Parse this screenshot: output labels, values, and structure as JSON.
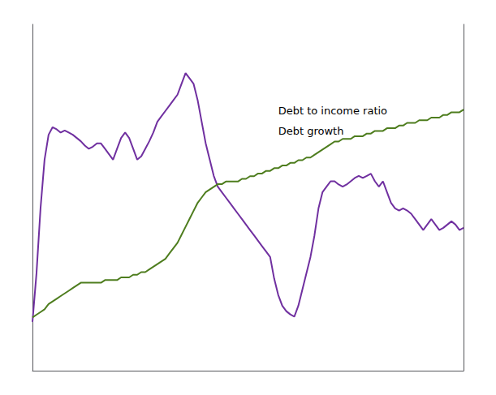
{
  "chart_data": {
    "type": "line",
    "x": [
      0,
      1,
      2,
      3,
      4,
      5,
      6,
      7,
      8,
      9,
      10,
      11,
      12,
      13,
      14,
      15,
      16,
      17,
      18,
      19,
      20,
      21,
      22,
      23,
      24,
      25,
      26,
      27,
      28,
      29,
      30,
      31,
      32,
      33,
      34,
      35,
      36,
      37,
      38,
      39,
      40,
      41,
      42,
      43,
      44,
      45,
      46,
      47,
      48,
      49,
      50,
      51,
      52,
      53,
      54,
      55,
      56,
      57,
      58,
      59,
      60,
      61,
      62,
      63,
      64,
      65,
      66,
      67,
      68,
      69,
      70,
      71,
      72,
      73,
      74,
      75,
      76,
      77,
      78,
      79,
      80,
      81,
      82,
      83,
      84,
      85,
      86,
      87,
      88,
      89,
      90,
      91,
      92,
      93,
      94,
      95,
      96,
      97,
      98,
      99,
      100,
      101,
      102,
      103,
      104,
      105,
      106,
      107
    ],
    "series": [
      {
        "color": "#7030a0",
        "values": [
          -5.5,
          -1.0,
          5.0,
          9.5,
          11.8,
          12.5,
          12.3,
          12.0,
          12.2,
          12.0,
          11.8,
          11.5,
          11.2,
          10.8,
          10.5,
          10.7,
          11.0,
          11.0,
          10.5,
          10.0,
          9.5,
          10.5,
          11.5,
          12.0,
          11.5,
          10.5,
          9.5,
          9.8,
          10.5,
          11.2,
          12.0,
          13.0,
          13.5,
          14.0,
          14.5,
          15.0,
          15.5,
          16.5,
          17.5,
          17.0,
          16.5,
          15.0,
          13.0,
          11.0,
          9.5,
          8.0,
          7.0,
          6.5,
          6.0,
          5.5,
          5.0,
          4.5,
          4.0,
          3.5,
          3.0,
          2.5,
          2.0,
          1.5,
          1.0,
          0.5,
          -1.5,
          -3.0,
          -4.0,
          -4.5,
          -4.8,
          -5.0,
          -4.0,
          -2.5,
          -1.0,
          0.5,
          2.5,
          5.0,
          6.5,
          7.0,
          7.5,
          7.5,
          7.2,
          7.0,
          7.2,
          7.5,
          7.8,
          8.0,
          7.8,
          8.0,
          8.2,
          7.5,
          7.0,
          7.5,
          6.5,
          5.5,
          5.0,
          4.8,
          5.0,
          4.8,
          4.5,
          4.0,
          3.5,
          3.0,
          3.5,
          4.0,
          3.5,
          3.0,
          3.2,
          3.5,
          3.8,
          3.5,
          3.0,
          3.2
        ]
      },
      {
        "color": "#4e7d1e",
        "axis": "y2",
        "values": [
          130,
          131,
          132,
          133,
          135,
          136,
          137,
          138,
          139,
          140,
          141,
          142,
          143,
          143,
          143,
          143,
          143,
          143,
          144,
          144,
          144,
          144,
          145,
          145,
          145,
          146,
          146,
          147,
          147,
          148,
          149,
          150,
          151,
          152,
          154,
          156,
          158,
          161,
          164,
          167,
          170,
          173,
          175,
          177,
          178,
          179,
          180,
          180,
          181,
          181,
          181,
          181,
          182,
          182,
          183,
          183,
          184,
          184,
          185,
          185,
          186,
          186,
          187,
          187,
          188,
          188,
          189,
          189,
          190,
          190,
          191,
          192,
          193,
          194,
          195,
          196,
          196,
          197,
          197,
          197,
          198,
          198,
          198,
          199,
          199,
          200,
          200,
          200,
          201,
          201,
          201,
          202,
          202,
          203,
          203,
          203,
          204,
          204,
          204,
          205,
          205,
          205,
          206,
          206,
          207,
          207,
          207,
          208
        ]
      }
    ],
    "annotations": [
      "Debt to income ratio",
      "Debt growth"
    ],
    "xlim": [
      0,
      107
    ],
    "ylim": [
      -10,
      22
    ],
    "y2lim": [
      110,
      240
    ],
    "grid": false,
    "tick_labels": false
  }
}
